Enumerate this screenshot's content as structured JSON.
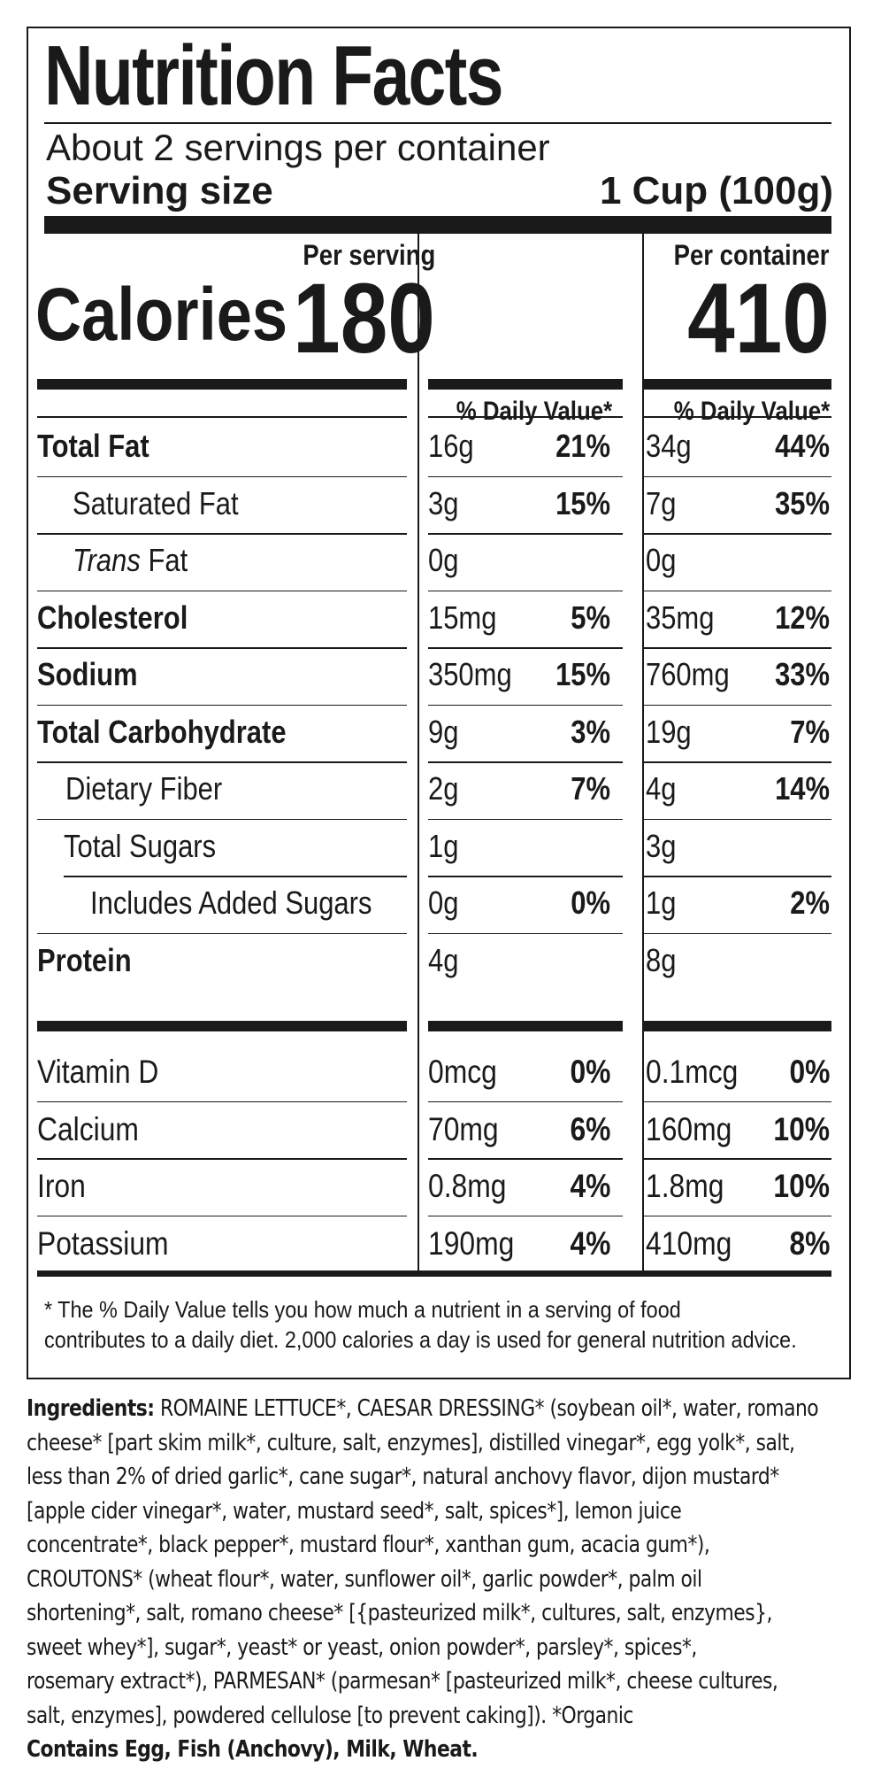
{
  "title": "Nutrition Facts",
  "servings_per_container": "About 2 servings per container",
  "serving_size_label": "Serving size",
  "serving_size_value": "1 Cup (100g)",
  "per_serving_label": "Per serving",
  "per_container_label": "Per container",
  "calories_label": "Calories",
  "calories_serving": "180",
  "calories_container": "410",
  "daily_value_header": "% Daily Value*",
  "nutrients": [
    {
      "name": "Total Fat",
      "serving_amt": "16g",
      "serving_dv": "21%",
      "container_amt": "34g",
      "container_dv": "44%"
    },
    {
      "name": "Saturated Fat",
      "serving_amt": "3g",
      "serving_dv": "15%",
      "container_amt": "7g",
      "container_dv": "35%"
    },
    {
      "name_italic": "Trans",
      "name": " Fat",
      "serving_amt": "0g",
      "serving_dv": "",
      "container_amt": "0g",
      "container_dv": ""
    },
    {
      "name": "Cholesterol",
      "serving_amt": "15mg",
      "serving_dv": "5%",
      "container_amt": "35mg",
      "container_dv": "12%"
    },
    {
      "name": "Sodium",
      "serving_amt": "350mg",
      "serving_dv": "15%",
      "container_amt": "760mg",
      "container_dv": "33%"
    },
    {
      "name": "Total Carbohydrate",
      "serving_amt": "9g",
      "serving_dv": "3%",
      "container_amt": "19g",
      "container_dv": "7%"
    },
    {
      "name": "Dietary Fiber",
      "serving_amt": "2g",
      "serving_dv": "7%",
      "container_amt": "4g",
      "container_dv": "14%"
    },
    {
      "name": "Total Sugars",
      "serving_amt": "1g",
      "serving_dv": "",
      "container_amt": "3g",
      "container_dv": ""
    },
    {
      "name": "Includes Added Sugars",
      "serving_amt": "0g",
      "serving_dv": "0%",
      "container_amt": "1g",
      "container_dv": "2%"
    },
    {
      "name": "Protein",
      "serving_amt": "4g",
      "serving_dv": "",
      "container_amt": "8g",
      "container_dv": ""
    }
  ],
  "vitamins": [
    {
      "name": "Vitamin D",
      "serving_amt": "0mcg",
      "serving_dv": "0%",
      "container_amt": "0.1mcg",
      "container_dv": "0%"
    },
    {
      "name": "Calcium",
      "serving_amt": "70mg",
      "serving_dv": "6%",
      "container_amt": "160mg",
      "container_dv": "10%"
    },
    {
      "name": "Iron",
      "serving_amt": "0.8mg",
      "serving_dv": "4%",
      "container_amt": "1.8mg",
      "container_dv": "10%"
    },
    {
      "name": "Potassium",
      "serving_amt": "190mg",
      "serving_dv": "4%",
      "container_amt": "410mg",
      "container_dv": "8%"
    }
  ],
  "footnote_line1": "* The % Daily Value tells you how much a nutrient in a serving of food",
  "footnote_line2": "contributes to a daily diet. 2,000 calories a  day is used for general nutrition advice.",
  "ingredients_label": "Ingredients:",
  "ingredients_lines": [
    " ROMAINE LETTUCE*, CAESAR DRESSING* (soybean oil*, water, romano",
    "cheese* [part skim milk*, culture, salt, enzymes], distilled vinegar*, egg yolk*, salt,",
    "less than 2% of dried garlic*, cane sugar*, natural anchovy flavor, dijon mustard*",
    "[apple cider vinegar*, water, mustard seed*, salt, spices*], lemon juice",
    "concentrate*, black pepper*, mustard flour*, xanthan gum, acacia gum*),",
    "CROUTONS* (wheat flour*, water, sunflower oil*, garlic powder*, palm oil",
    "shortening*, salt, romano cheese* [{pasteurized milk*, cultures, salt, enzymes},",
    "sweet whey*], sugar*, yeast* or yeast, onion powder*, parsley*, spices*,",
    "rosemary extract*), PARMESAN* (parmesan* [pasteurized milk*, cheese cultures,",
    "salt, enzymes], powdered cellulose [to prevent caking]). *Organic"
  ],
  "allergens": "Contains Egg, Fish (Anchovy), Milk, Wheat."
}
